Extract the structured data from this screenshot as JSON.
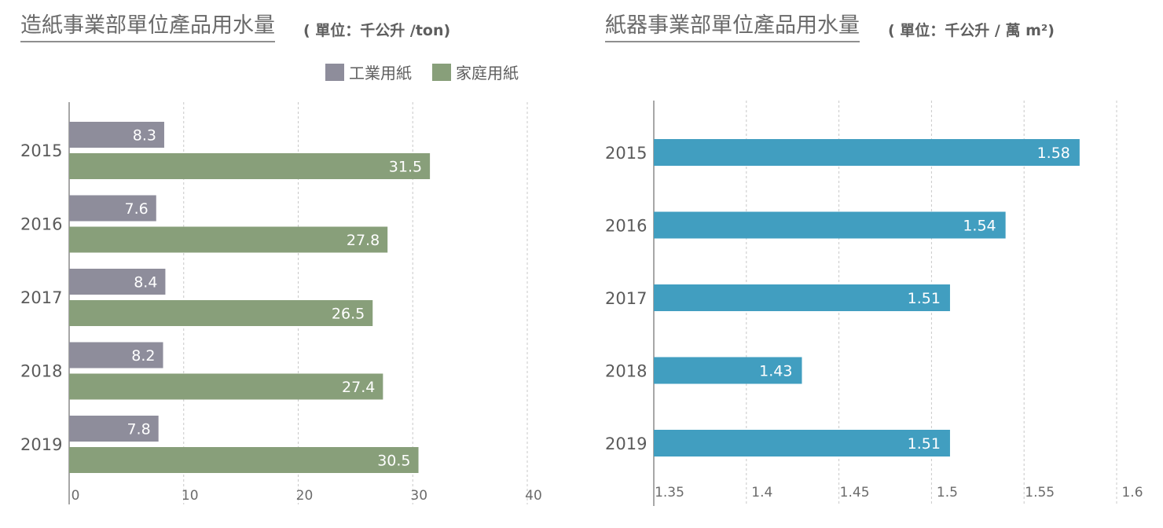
{
  "chart_data": [
    {
      "type": "bar",
      "orientation": "horizontal",
      "title": "造紙事業部單位產品用水量",
      "unit": "( 單位：千公升 /ton)",
      "categories": [
        "2015",
        "2016",
        "2017",
        "2018",
        "2019"
      ],
      "series": [
        {
          "name": "工業用紙",
          "color": "#8e8d9b",
          "values": [
            8.3,
            7.6,
            8.4,
            8.2,
            7.8
          ]
        },
        {
          "name": "家庭用紙",
          "color": "#889f7a",
          "values": [
            31.5,
            27.8,
            26.5,
            27.4,
            30.5
          ]
        }
      ],
      "xlim": [
        0,
        40
      ],
      "xticks": [
        "0",
        "10",
        "20",
        "30",
        "40"
      ],
      "legend": "top",
      "grid": true
    },
    {
      "type": "bar",
      "orientation": "horizontal",
      "title": "紙器事業部單位產品用水量",
      "unit": "( 單位：千公升 / 萬 m²)",
      "categories": [
        "2015",
        "2016",
        "2017",
        "2018",
        "2019"
      ],
      "series": [
        {
          "color": "#419ec0",
          "values": [
            1.58,
            1.54,
            1.51,
            1.43,
            1.51
          ],
          "labels": [
            "1.58",
            "1.54",
            "1.51",
            "1.43",
            "1.51"
          ]
        }
      ],
      "xlim": [
        1.35,
        1.6
      ],
      "xticks": [
        "1.35",
        "1.4",
        "1.45",
        "1.5",
        "1.55",
        "1.6"
      ],
      "grid": true
    }
  ]
}
